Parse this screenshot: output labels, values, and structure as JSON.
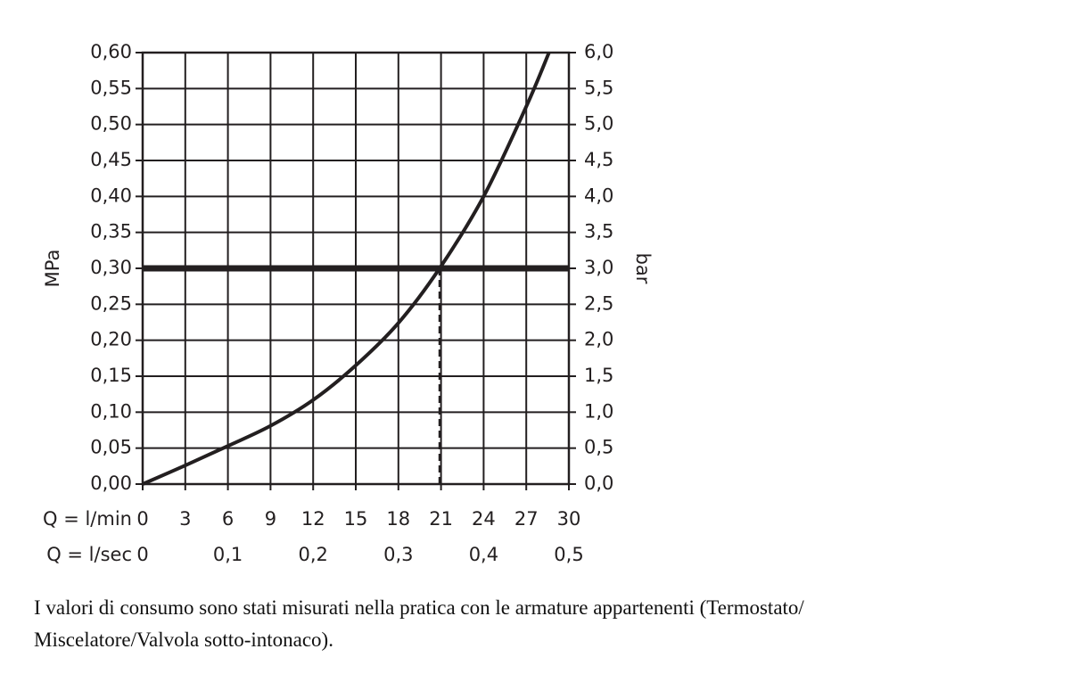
{
  "chart_data": {
    "type": "line",
    "ylabel": "MPa",
    "y2label": "bar",
    "xlabel": "Q = l/min",
    "x2label": "Q = l/sec",
    "x": [
      0,
      3,
      6,
      9,
      12,
      15,
      18,
      20.9,
      24,
      27,
      28.6
    ],
    "series": [
      {
        "color": "#231f20",
        "values": [
          0,
          0.026,
          0.053,
          0.081,
          0.117,
          0.165,
          0.224,
          0.3,
          0.4,
          0.525,
          0.6
        ]
      }
    ],
    "reference_y": 0.3,
    "drop_x": 20.9,
    "xlim": [
      0,
      30
    ],
    "xticks": [
      0,
      3,
      6,
      9,
      12,
      15,
      18,
      21,
      24,
      27,
      30
    ],
    "x2lim": [
      0,
      0.5
    ],
    "x2ticks": [
      0,
      {
        "value": 0.1,
        "label": "0,1"
      },
      {
        "value": 0.2,
        "label": "0,2"
      },
      {
        "value": 0.3,
        "label": "0,3"
      },
      {
        "value": 0.4,
        "label": "0,4"
      },
      {
        "value": 0.5,
        "label": "0,5"
      }
    ],
    "ylim": [
      0,
      0.6
    ],
    "yticks": [
      {
        "value": 0,
        "label": "0,00"
      },
      {
        "value": 0.05,
        "label": "0,05"
      },
      {
        "value": 0.1,
        "label": "0,10"
      },
      {
        "value": 0.15,
        "label": "0,15"
      },
      {
        "value": 0.2,
        "label": "0,20"
      },
      {
        "value": 0.25,
        "label": "0,25"
      },
      {
        "value": 0.3,
        "label": "0,30"
      },
      {
        "value": 0.35,
        "label": "0,35"
      },
      {
        "value": 0.4,
        "label": "0,40"
      },
      {
        "value": 0.45,
        "label": "0,45"
      },
      {
        "value": 0.5,
        "label": "0,50"
      },
      {
        "value": 0.55,
        "label": "0,55"
      },
      {
        "value": 0.6,
        "label": "0,60"
      }
    ],
    "y2lim": [
      0,
      6
    ],
    "y2ticks": [
      {
        "value": 0,
        "label": "0,0"
      },
      {
        "value": 0.5,
        "label": "0,5"
      },
      {
        "value": 1,
        "label": "1,0"
      },
      {
        "value": 1.5,
        "label": "1,5"
      },
      {
        "value": 2,
        "label": "2,0"
      },
      {
        "value": 2.5,
        "label": "2,5"
      },
      {
        "value": 3,
        "label": "3,0"
      },
      {
        "value": 3.5,
        "label": "3,5"
      },
      {
        "value": 4,
        "label": "4,0"
      },
      {
        "value": 4.5,
        "label": "4,5"
      },
      {
        "value": 5,
        "label": "5,0"
      },
      {
        "value": 5.5,
        "label": "5,5"
      },
      {
        "value": 6,
        "label": "6,0"
      }
    ],
    "grid": true
  },
  "caption": [
    "I valori di consumo sono stati misurati nella pratica con le armature appartenenti (Termostato/",
    "Miscelatore/Valvola sotto-intonaco)."
  ]
}
